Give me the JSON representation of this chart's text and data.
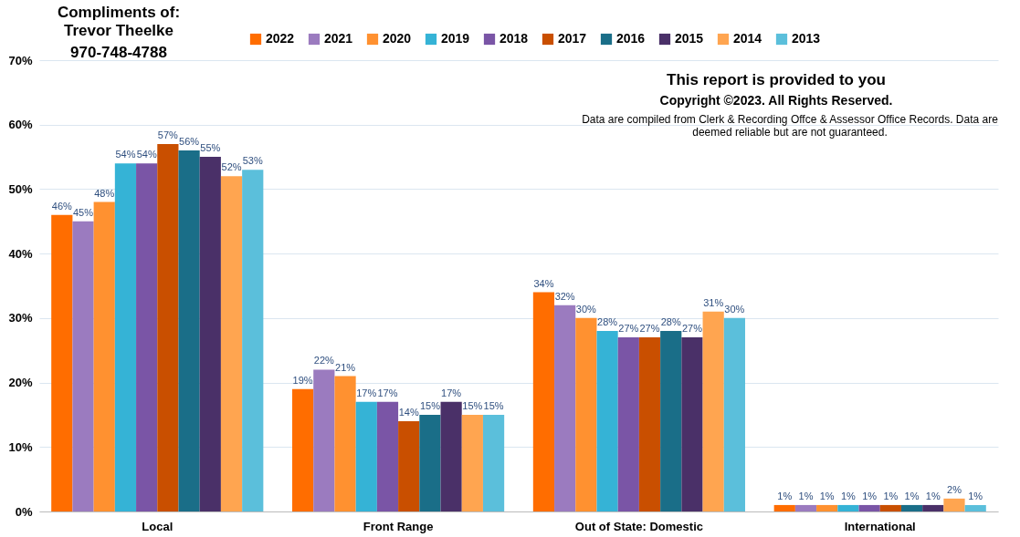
{
  "chart_data": {
    "type": "bar",
    "categories": [
      "Local",
      "Front Range",
      "Out of State: Domestic",
      "International"
    ],
    "series": [
      {
        "name": "2022",
        "color": "#ff6d00",
        "values": [
          46,
          19,
          34,
          1
        ],
        "value_labels": [
          "46%",
          "19%",
          "34%",
          "1%"
        ]
      },
      {
        "name": "2021",
        "color": "#9b7bbf",
        "values": [
          45,
          22,
          32,
          1
        ],
        "value_labels": [
          "45%",
          "22%",
          "32%",
          "1%"
        ]
      },
      {
        "name": "2020",
        "color": "#ff9130",
        "values": [
          48,
          21,
          30,
          1
        ],
        "value_labels": [
          "48%",
          "21%",
          "30%",
          "1%"
        ]
      },
      {
        "name": "2019",
        "color": "#35b3d6",
        "values": [
          54,
          17,
          28,
          1
        ],
        "value_labels": [
          "54%",
          "17%",
          "28%",
          "1%"
        ]
      },
      {
        "name": "2018",
        "color": "#7a55a6",
        "values": [
          54,
          17,
          27,
          1
        ],
        "value_labels": [
          "54%",
          "17%",
          "27%",
          "1%"
        ]
      },
      {
        "name": "2017",
        "color": "#c94f00",
        "values": [
          57,
          14,
          27,
          1
        ],
        "value_labels": [
          "57%",
          "14%",
          "27%",
          "1%"
        ]
      },
      {
        "name": "2016",
        "color": "#1a6e88",
        "values": [
          56,
          15,
          28,
          1
        ],
        "value_labels": [
          "56%",
          "15%",
          "28%",
          "1%"
        ]
      },
      {
        "name": "2015",
        "color": "#4a3068",
        "values": [
          55,
          17,
          27,
          1
        ],
        "value_labels": [
          "55%",
          "17%",
          "27%",
          "1%"
        ]
      },
      {
        "name": "2014",
        "color": "#ffa550",
        "values": [
          52,
          15,
          31,
          2
        ],
        "value_labels": [
          "52%",
          "15%",
          "31%",
          "2%"
        ]
      },
      {
        "name": "2013",
        "color": "#5bbfdb",
        "values": [
          53,
          15,
          30,
          1
        ],
        "value_labels": [
          "53%",
          "15%",
          "30%",
          "1%"
        ]
      }
    ],
    "ylim": [
      0,
      70
    ],
    "yticks": [
      {
        "value": 0,
        "label": "0%"
      },
      {
        "value": 10,
        "label": "10%"
      },
      {
        "value": 20,
        "label": "20%"
      },
      {
        "value": 30,
        "label": "30%"
      },
      {
        "value": 40,
        "label": "40%"
      },
      {
        "value": 50,
        "label": "50%"
      },
      {
        "value": 60,
        "label": "60%"
      },
      {
        "value": 70,
        "label": "70%"
      }
    ],
    "grid": "y",
    "legend": "top",
    "annotations": [
      "Compliments of:",
      "Trevor Theelke",
      "970-748-4788",
      "This report is provided to you",
      "Copyright ©2023.  All Rights Reserved.",
      "Data are compiled from Clerk & Recording Offce & Assessor Office Records.  Data are deemed reliable but are not guaranteed."
    ]
  }
}
